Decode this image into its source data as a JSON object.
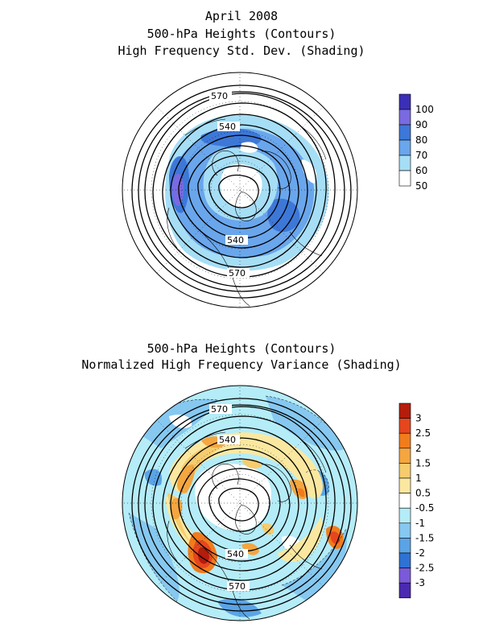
{
  "top_panel": {
    "title_line1": "April 2008",
    "title_line2": "500-hPa Heights (Contours)",
    "title_line3": "High Frequency Std. Dev. (Shading)",
    "contour_labels": [
      "570",
      "540",
      "540",
      "570"
    ],
    "colorbar": {
      "labels": [
        "100",
        "90",
        "80",
        "70",
        "60",
        "50"
      ],
      "colors": [
        "#3b2fb8",
        "#7a6ae0",
        "#3d78d8",
        "#6aa6ec",
        "#a6def6",
        "#ffffff"
      ]
    }
  },
  "bottom_panel": {
    "title_line1": "500-hPa Heights (Contours)",
    "title_line2": "Normalized High Frequency Variance (Shading)",
    "contour_labels": [
      "570",
      "540",
      "540",
      "570"
    ],
    "colorbar": {
      "labels": [
        "3",
        "2.5",
        "2",
        "1.5",
        "1",
        "0.5",
        "-0.5",
        "-1",
        "-1.5",
        "-2",
        "-2.5",
        "-3"
      ],
      "colors": [
        "#b41c0c",
        "#e6461e",
        "#f07c1c",
        "#f4a640",
        "#f6cc6e",
        "#fae8a0",
        "#ffffff",
        "#b4ecf8",
        "#86c8f0",
        "#5aa4e6",
        "#2e72d4",
        "#7a5ad8",
        "#4a2ab0"
      ]
    }
  }
}
